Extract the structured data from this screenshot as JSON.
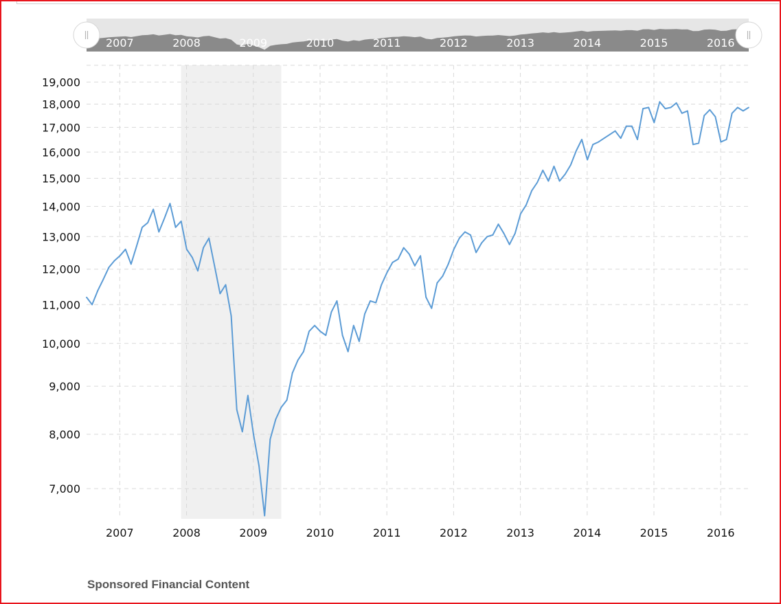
{
  "chart_data": {
    "type": "line",
    "title": "",
    "xlabel": "",
    "ylabel": "",
    "y_scale": "log",
    "ylim": [
      6500,
      19800
    ],
    "xlim": [
      "2006-07-01",
      "2016-06-01"
    ],
    "grid": true,
    "recession_band": {
      "start": "2007-12-01",
      "end": "2009-06-01",
      "color": "#f0f0f0"
    },
    "line_color": "#5b9bd5",
    "y_ticks": [
      "19,000",
      "18,000",
      "17,000",
      "16,000",
      "15,000",
      "14,000",
      "13,000",
      "12,000",
      "11,000",
      "10,000",
      "9,000",
      "8,000",
      "7,000"
    ],
    "x_ticks": [
      "2007",
      "2008",
      "2009",
      "2010",
      "2011",
      "2012",
      "2013",
      "2014",
      "2015",
      "2016"
    ],
    "navigator_ticks": [
      "2007",
      "2008",
      "2009",
      "2010",
      "2011",
      "2012",
      "2013",
      "2014",
      "2015",
      "2016"
    ],
    "series": [
      {
        "values": [
          [
            "2006-07-01",
            11200
          ],
          [
            "2006-08-01",
            11000
          ],
          [
            "2006-09-01",
            11380
          ],
          [
            "2006-10-01",
            11700
          ],
          [
            "2006-11-01",
            12050
          ],
          [
            "2006-12-01",
            12250
          ],
          [
            "2007-01-01",
            12400
          ],
          [
            "2007-02-01",
            12600
          ],
          [
            "2007-03-01",
            12150
          ],
          [
            "2007-04-01",
            12700
          ],
          [
            "2007-05-01",
            13300
          ],
          [
            "2007-06-01",
            13450
          ],
          [
            "2007-07-01",
            13900
          ],
          [
            "2007-08-01",
            13150
          ],
          [
            "2007-09-01",
            13600
          ],
          [
            "2007-10-01",
            14100
          ],
          [
            "2007-11-01",
            13300
          ],
          [
            "2007-12-01",
            13500
          ],
          [
            "2008-01-01",
            12600
          ],
          [
            "2008-02-01",
            12350
          ],
          [
            "2008-03-01",
            11950
          ],
          [
            "2008-04-01",
            12650
          ],
          [
            "2008-05-01",
            12950
          ],
          [
            "2008-06-01",
            12100
          ],
          [
            "2008-07-01",
            11300
          ],
          [
            "2008-08-01",
            11550
          ],
          [
            "2008-09-01",
            10700
          ],
          [
            "2008-10-01",
            8500
          ],
          [
            "2008-11-01",
            8050
          ],
          [
            "2008-12-01",
            8800
          ],
          [
            "2009-01-01",
            8000
          ],
          [
            "2009-02-01",
            7400
          ],
          [
            "2009-03-01",
            6550
          ],
          [
            "2009-04-01",
            7900
          ],
          [
            "2009-05-01",
            8300
          ],
          [
            "2009-06-01",
            8550
          ],
          [
            "2009-07-01",
            8700
          ],
          [
            "2009-08-01",
            9300
          ],
          [
            "2009-09-01",
            9600
          ],
          [
            "2009-10-01",
            9800
          ],
          [
            "2009-11-01",
            10300
          ],
          [
            "2009-12-01",
            10450
          ],
          [
            "2010-01-01",
            10300
          ],
          [
            "2010-02-01",
            10200
          ],
          [
            "2010-03-01",
            10800
          ],
          [
            "2010-04-01",
            11100
          ],
          [
            "2010-05-01",
            10200
          ],
          [
            "2010-06-01",
            9800
          ],
          [
            "2010-07-01",
            10450
          ],
          [
            "2010-08-01",
            10050
          ],
          [
            "2010-09-01",
            10750
          ],
          [
            "2010-10-01",
            11100
          ],
          [
            "2010-11-01",
            11050
          ],
          [
            "2010-12-01",
            11550
          ],
          [
            "2011-01-01",
            11900
          ],
          [
            "2011-02-01",
            12200
          ],
          [
            "2011-03-01",
            12300
          ],
          [
            "2011-04-01",
            12650
          ],
          [
            "2011-05-01",
            12450
          ],
          [
            "2011-06-01",
            12100
          ],
          [
            "2011-07-01",
            12400
          ],
          [
            "2011-08-01",
            11200
          ],
          [
            "2011-09-01",
            10900
          ],
          [
            "2011-10-01",
            11600
          ],
          [
            "2011-11-01",
            11800
          ],
          [
            "2011-12-01",
            12150
          ],
          [
            "2012-01-01",
            12600
          ],
          [
            "2012-02-01",
            12950
          ],
          [
            "2012-03-01",
            13150
          ],
          [
            "2012-04-01",
            13050
          ],
          [
            "2012-05-01",
            12500
          ],
          [
            "2012-06-01",
            12800
          ],
          [
            "2012-07-01",
            13000
          ],
          [
            "2012-08-01",
            13050
          ],
          [
            "2012-09-01",
            13400
          ],
          [
            "2012-10-01",
            13100
          ],
          [
            "2012-11-01",
            12750
          ],
          [
            "2012-12-01",
            13100
          ],
          [
            "2013-01-01",
            13750
          ],
          [
            "2013-02-01",
            14050
          ],
          [
            "2013-03-01",
            14550
          ],
          [
            "2013-04-01",
            14850
          ],
          [
            "2013-05-01",
            15300
          ],
          [
            "2013-06-01",
            14900
          ],
          [
            "2013-07-01",
            15450
          ],
          [
            "2013-08-01",
            14900
          ],
          [
            "2013-09-01",
            15150
          ],
          [
            "2013-10-01",
            15500
          ],
          [
            "2013-11-01",
            16050
          ],
          [
            "2013-12-01",
            16500
          ],
          [
            "2014-01-01",
            15700
          ],
          [
            "2014-02-01",
            16300
          ],
          [
            "2014-03-01",
            16400
          ],
          [
            "2014-04-01",
            16550
          ],
          [
            "2014-05-01",
            16700
          ],
          [
            "2014-06-01",
            16850
          ],
          [
            "2014-07-01",
            16550
          ],
          [
            "2014-08-01",
            17050
          ],
          [
            "2014-09-01",
            17050
          ],
          [
            "2014-10-01",
            16500
          ],
          [
            "2014-11-01",
            17800
          ],
          [
            "2014-12-01",
            17850
          ],
          [
            "2015-01-01",
            17200
          ],
          [
            "2015-02-01",
            18100
          ],
          [
            "2015-03-01",
            17800
          ],
          [
            "2015-04-01",
            17850
          ],
          [
            "2015-05-01",
            18050
          ],
          [
            "2015-06-01",
            17600
          ],
          [
            "2015-07-01",
            17700
          ],
          [
            "2015-08-01",
            16300
          ],
          [
            "2015-09-01",
            16350
          ],
          [
            "2015-10-01",
            17500
          ],
          [
            "2015-11-01",
            17750
          ],
          [
            "2015-12-01",
            17450
          ],
          [
            "2016-01-01",
            16400
          ],
          [
            "2016-02-01",
            16500
          ],
          [
            "2016-03-01",
            17600
          ],
          [
            "2016-04-01",
            17850
          ],
          [
            "2016-05-01",
            17700
          ],
          [
            "2016-06-01",
            17850
          ]
        ]
      }
    ]
  },
  "footer": {
    "sponsored": "Sponsored Financial Content"
  },
  "colors": {
    "navigator_fill": "#8a8a8a",
    "navigator_bg": "#e6e6e6",
    "grid": "#d9d9d9",
    "frame": "#e8141c"
  },
  "icons": {
    "left_handle": "grip-handle-icon",
    "right_handle": "grip-handle-icon"
  }
}
